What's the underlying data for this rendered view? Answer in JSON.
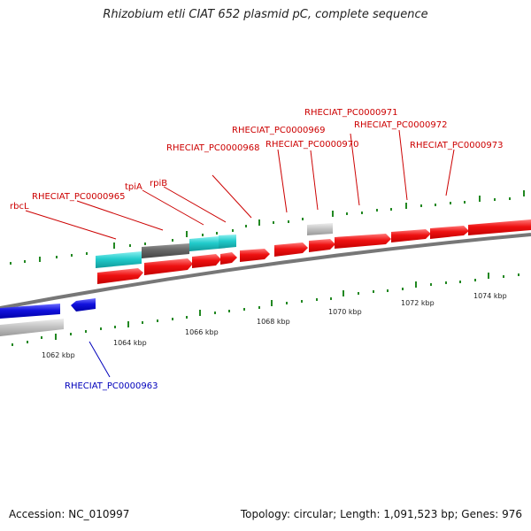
{
  "title": "Rhizobium etli CIAT 652 plasmid pC, complete sequence",
  "footer": {
    "accession": "Accession: NC_010997",
    "info": "Topology: circular; Length: 1,091,523 bp; Genes: 976"
  },
  "colors": {
    "forward_gene": "#ee1111",
    "reverse_gene": "#1111dd",
    "rna_gene": "#22cccc",
    "pseudo_gene": "#666666",
    "other_feature": "#bbbbbb",
    "backbone": "#777777",
    "tick": "#228822",
    "forward_label": "#cc0000",
    "reverse_label": "#0000bb"
  },
  "axis": {
    "scale_labels": [
      "1062 kbp",
      "1064 kbp",
      "1066 kbp",
      "1068 kbp",
      "1070 kbp",
      "1072 kbp",
      "1074 kbp"
    ]
  },
  "labels": {
    "rbcL": "rbcL",
    "PC0000965": "RHECIAT_PC0000965",
    "tpiA": "tpiA",
    "rpiB": "rpiB",
    "PC0000968": "RHECIAT_PC0000968",
    "PC0000969": "RHECIAT_PC0000969",
    "PC0000970": "RHECIAT_PC0000970",
    "PC0000971": "RHECIAT_PC0000971",
    "PC0000972": "RHECIAT_PC0000972",
    "PC0000973": "RHECIAT_PC0000973",
    "PC0000963": "RHECIAT_PC0000963"
  }
}
